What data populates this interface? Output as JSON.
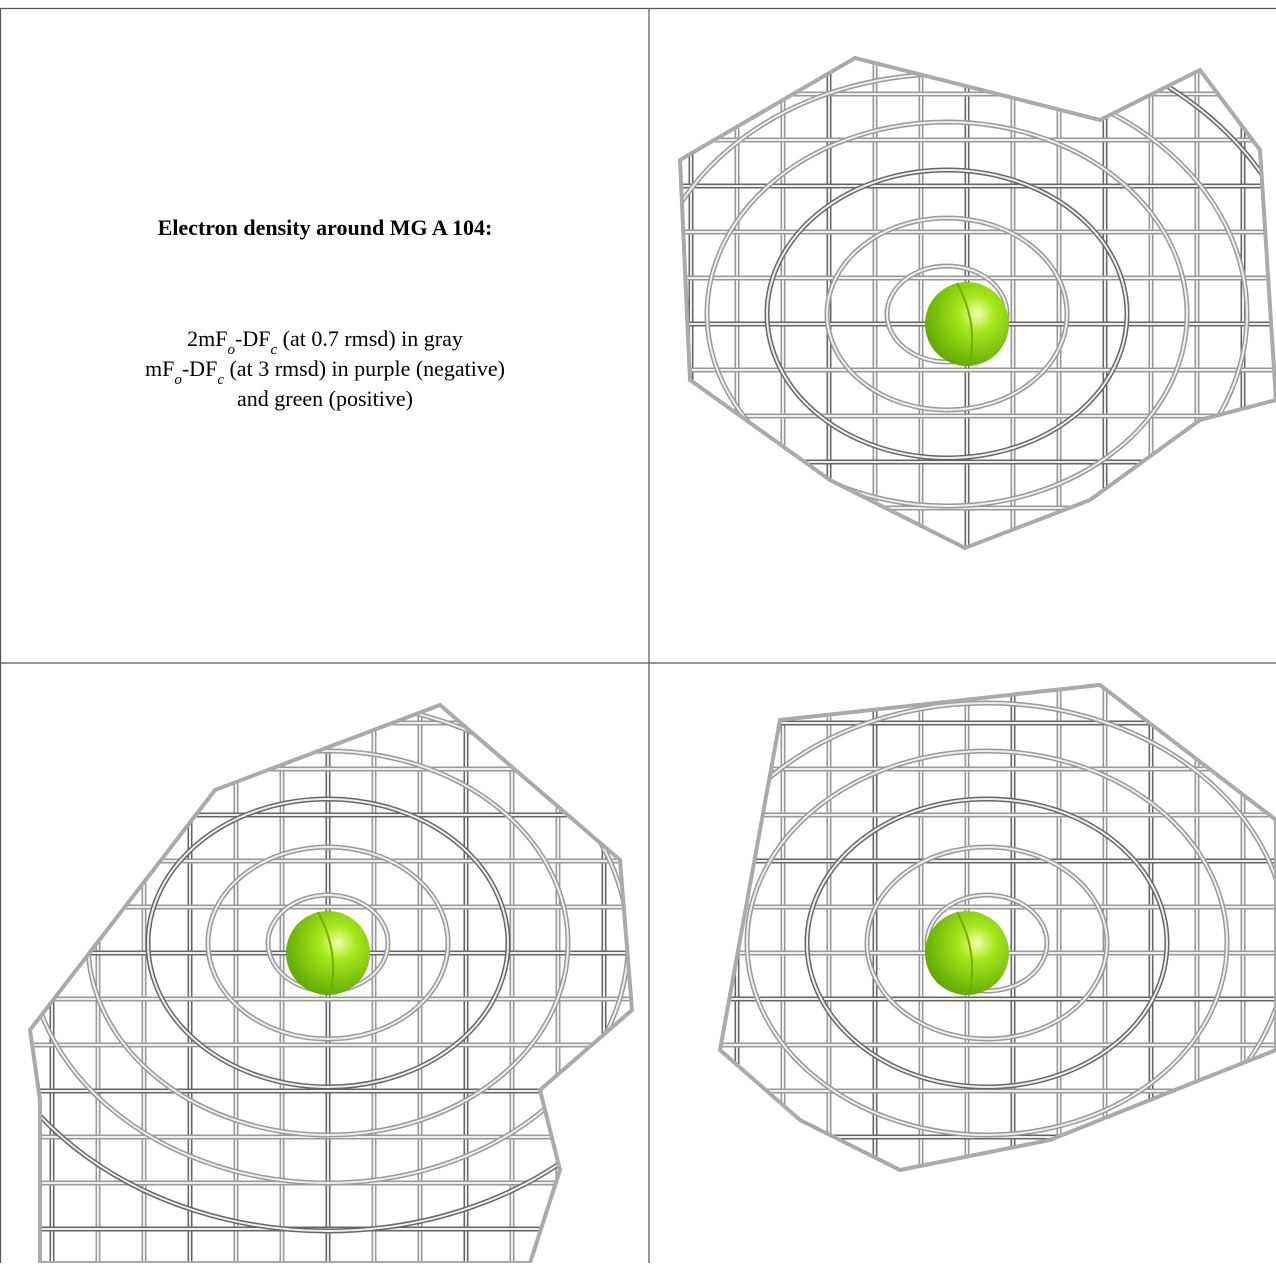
{
  "legend": {
    "title": "Electron density around MG A 104:",
    "lines": [
      [
        "2mF",
        "o",
        "-DF",
        "c",
        " (at 0.7 rmsd) in gray"
      ],
      [
        "mF",
        "o",
        "-DF",
        "c",
        " (at 3 rmsd) in purple (negative)"
      ],
      [
        "and green (positive)"
      ]
    ]
  }
}
